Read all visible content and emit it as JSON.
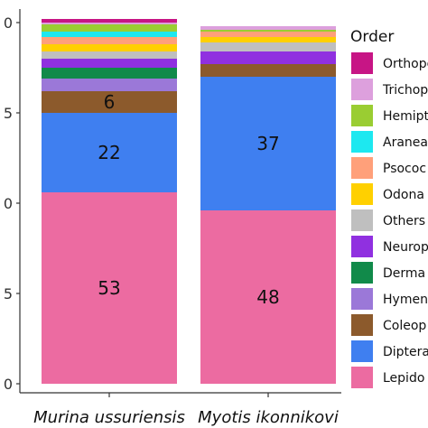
{
  "chart_data": {
    "type": "bar",
    "stacked": true,
    "percent": true,
    "categories": [
      "Murina ussuriensis",
      "Myotis ikonnikovi"
    ],
    "y_ticks_visible": [
      "0",
      "5",
      "0",
      "5",
      "0"
    ],
    "ylim": [
      0,
      100
    ],
    "legend": {
      "title": "Order",
      "position": "right",
      "entries": [
        "Orthope",
        "Trichop",
        "Hemipt",
        "Aranea",
        "Psococ",
        "Odona",
        "Others",
        "Neurop",
        "Derma",
        "Hymen",
        "Coleop",
        "Diptera",
        "Lepido"
      ]
    },
    "series": [
      {
        "name": "Lepido",
        "color": "#ec6ba1",
        "values": [
          53,
          48
        ],
        "labels": [
          "53",
          "48"
        ]
      },
      {
        "name": "Diptera",
        "color": "#3f7ff0",
        "values": [
          22,
          37
        ],
        "labels": [
          "22",
          "37"
        ]
      },
      {
        "name": "Coleop",
        "color": "#8c5a2c",
        "values": [
          6,
          3.5
        ],
        "labels": [
          "6",
          ""
        ]
      },
      {
        "name": "Hymen",
        "color": "#9b78d8",
        "values": [
          3.5,
          0
        ],
        "labels": [
          "",
          ""
        ]
      },
      {
        "name": "Derma",
        "color": "#118a4a",
        "values": [
          3,
          0
        ],
        "labels": [
          "",
          ""
        ]
      },
      {
        "name": "Neurop",
        "color": "#9030e0",
        "values": [
          2.5,
          3.5
        ],
        "labels": [
          "",
          ""
        ]
      },
      {
        "name": "Others",
        "color": "#bfbfbf",
        "values": [
          2,
          2.5
        ],
        "labels": [
          "",
          ""
        ]
      },
      {
        "name": "Odona",
        "color": "#ffd000",
        "values": [
          2,
          1.5
        ],
        "labels": [
          "",
          ""
        ]
      },
      {
        "name": "Psococ",
        "color": "#ffa07a",
        "values": [
          2,
          1.5
        ],
        "labels": [
          "",
          ""
        ]
      },
      {
        "name": "Aranea",
        "color": "#1de8f0",
        "values": [
          1.5,
          0
        ],
        "labels": [
          "",
          ""
        ]
      },
      {
        "name": "Hemipt",
        "color": "#9acd32",
        "values": [
          2,
          0.5
        ],
        "labels": [
          "",
          ""
        ]
      },
      {
        "name": "Trichop",
        "color": "#dda0dd",
        "values": [
          0.5,
          1
        ],
        "labels": [
          "",
          ""
        ]
      },
      {
        "name": "Orthope",
        "color": "#c71585",
        "values": [
          1,
          0
        ],
        "labels": [
          "",
          ""
        ]
      }
    ],
    "grid": false
  }
}
